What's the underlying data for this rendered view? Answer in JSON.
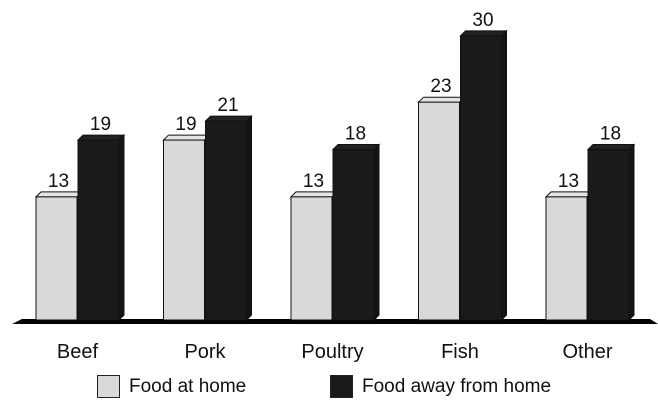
{
  "chart_data": {
    "type": "bar",
    "categories": [
      "Beef",
      "Pork",
      "Poultry",
      "Fish",
      "Other"
    ],
    "series": [
      {
        "name": "Food at home",
        "values": [
          13,
          19,
          13,
          23,
          13
        ],
        "color": "#d9d9d9"
      },
      {
        "name": "Food away from home",
        "values": [
          19,
          21,
          18,
          30,
          18
        ],
        "color": "#1a1a1a"
      }
    ],
    "title": "",
    "xlabel": "",
    "ylabel": "",
    "ylim": [
      0,
      35
    ],
    "grid": false,
    "legend_position": "bottom",
    "data_labels": true
  }
}
